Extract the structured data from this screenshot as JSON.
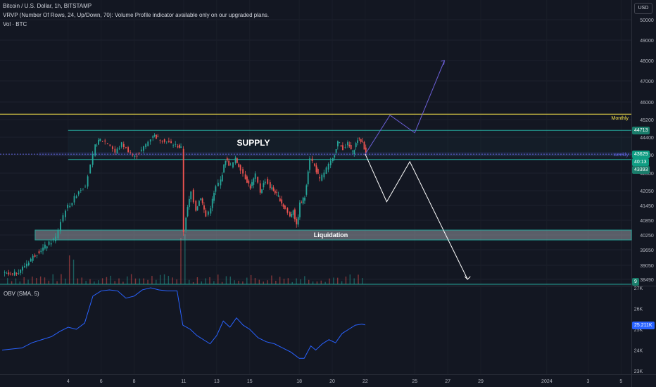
{
  "header": {
    "title": "Bitcoin / U.S. Dollar, 1h, BITSTAMP",
    "vrvp": "VRVP (Number Of Rows, 24, Up/Down, 70): Volume Profile indicator available only on our upgraded plans.",
    "vol": "Vol · BTC"
  },
  "currency_button": "USD",
  "colors": {
    "background": "#131722",
    "up": "#26a69a",
    "down": "#ef5350",
    "obv": "#2962ff",
    "monthly": "#f5e24a",
    "supply": "#26a69a",
    "weekly": "#5b5fd6",
    "arrow_white": "#ffffff",
    "arrow_purple": "#6b5fd6"
  },
  "price_tags": {
    "top": "44713",
    "current": "43629",
    "countdown": "40:13",
    "bottom": "43393",
    "volume": "9",
    "obv_value": "25.211K"
  },
  "chart_data": [
    {
      "type": "candlestick",
      "y_axis_ticks": [
        "50000",
        "49000",
        "48000",
        "47000",
        "46000",
        "45200",
        "44400",
        "43600",
        "42800",
        "42050",
        "41450",
        "40850",
        "40250",
        "39650",
        "39050",
        "38490"
      ],
      "x_axis_ticks": [
        "4",
        "6",
        "8",
        "11",
        "13",
        "15",
        "18",
        "20",
        "22",
        "25",
        "27",
        "29",
        "2024",
        "3",
        "5"
      ],
      "annotations": {
        "supply_label": "SUPPLY",
        "liquidation_label": "Liquidation",
        "monthly_label": "Monthly",
        "weekly_label": "weekly"
      },
      "levels": {
        "monthly": 45450,
        "supply_top": 44713,
        "supply_bottom": 43393,
        "weekly": 43629,
        "liquidation_top": 40450,
        "liquidation_bottom": 40050
      },
      "projection_bearish": [
        [
          22,
          43629
        ],
        [
          23.3,
          41600
        ],
        [
          24.7,
          43300
        ],
        [
          28.2,
          38490
        ]
      ],
      "projection_bullish": [
        [
          22,
          43629
        ],
        [
          23.5,
          45400
        ],
        [
          25,
          44600
        ],
        [
          26.8,
          48000
        ]
      ],
      "price_path": [
        [
          0,
          38700
        ],
        [
          0.6,
          38650
        ],
        [
          1.2,
          38950
        ],
        [
          1.7,
          39300
        ],
        [
          2.2,
          39600
        ],
        [
          2.8,
          39900
        ],
        [
          3.2,
          40150
        ],
        [
          3.5,
          40800
        ],
        [
          3.8,
          41300
        ],
        [
          4.2,
          41600
        ],
        [
          4.6,
          42050
        ],
        [
          5.0,
          42300
        ],
        [
          5.3,
          43100
        ],
        [
          5.6,
          44000
        ],
        [
          5.9,
          44300
        ],
        [
          6.2,
          44200
        ],
        [
          6.5,
          44050
        ],
        [
          6.8,
          43700
        ],
        [
          7.2,
          44100
        ],
        [
          7.6,
          43800
        ],
        [
          8.0,
          43500
        ],
        [
          8.4,
          43800
        ],
        [
          8.8,
          44200
        ],
        [
          9.1,
          44500
        ],
        [
          9.4,
          44350
        ],
        [
          9.8,
          44250
        ],
        [
          10.2,
          44100
        ],
        [
          10.6,
          44000
        ],
        [
          10.8,
          43900
        ],
        [
          10.95,
          40400
        ],
        [
          11.1,
          41000
        ],
        [
          11.4,
          42000
        ],
        [
          11.7,
          41300
        ],
        [
          12.0,
          41800
        ],
        [
          12.3,
          41000
        ],
        [
          12.6,
          41400
        ],
        [
          12.9,
          42200
        ],
        [
          13.2,
          42500
        ],
        [
          13.5,
          43400
        ],
        [
          13.8,
          43100
        ],
        [
          14.1,
          43400
        ],
        [
          14.4,
          43000
        ],
        [
          14.7,
          42600
        ],
        [
          15.0,
          42200
        ],
        [
          15.3,
          42700
        ],
        [
          15.6,
          42000
        ],
        [
          15.9,
          42500
        ],
        [
          16.2,
          42200
        ],
        [
          16.5,
          42000
        ],
        [
          16.8,
          41700
        ],
        [
          17.1,
          41300
        ],
        [
          17.4,
          41000
        ],
        [
          17.6,
          41300
        ],
        [
          17.8,
          40600
        ],
        [
          18.0,
          41500
        ],
        [
          18.3,
          41800
        ],
        [
          18.6,
          43500
        ],
        [
          18.9,
          43100
        ],
        [
          19.2,
          42500
        ],
        [
          19.6,
          43000
        ],
        [
          20.0,
          43400
        ],
        [
          20.3,
          44200
        ],
        [
          20.6,
          43900
        ],
        [
          20.9,
          44100
        ],
        [
          21.2,
          43700
        ],
        [
          21.5,
          44300
        ],
        [
          21.8,
          44200
        ],
        [
          22.0,
          43629
        ]
      ]
    },
    {
      "type": "line",
      "title": "OBV (SMA, 5)",
      "y_axis_ticks": [
        "27K",
        "26K",
        "25K",
        "24K",
        "23K"
      ],
      "series": [
        {
          "values": [
            [
              0,
              24.0
            ],
            [
              0.6,
              24.05
            ],
            [
              1.2,
              24.1
            ],
            [
              1.8,
              24.35
            ],
            [
              2.4,
              24.5
            ],
            [
              3.0,
              24.65
            ],
            [
              3.5,
              24.9
            ],
            [
              4.0,
              25.1
            ],
            [
              4.5,
              25.0
            ],
            [
              5.0,
              25.3
            ],
            [
              5.5,
              26.6
            ],
            [
              6.0,
              26.85
            ],
            [
              6.5,
              26.9
            ],
            [
              7.0,
              26.85
            ],
            [
              7.5,
              26.5
            ],
            [
              8.0,
              26.6
            ],
            [
              8.5,
              26.9
            ],
            [
              9.0,
              27.0
            ],
            [
              9.5,
              26.9
            ],
            [
              10.0,
              26.85
            ],
            [
              10.6,
              26.85
            ],
            [
              10.95,
              25.2
            ],
            [
              11.4,
              25.0
            ],
            [
              11.8,
              24.7
            ],
            [
              12.2,
              24.5
            ],
            [
              12.6,
              24.3
            ],
            [
              13.0,
              24.7
            ],
            [
              13.4,
              25.4
            ],
            [
              13.8,
              25.1
            ],
            [
              14.2,
              25.55
            ],
            [
              14.6,
              25.2
            ],
            [
              15.0,
              25.0
            ],
            [
              15.5,
              24.6
            ],
            [
              16.0,
              24.4
            ],
            [
              16.5,
              24.3
            ],
            [
              17.0,
              24.1
            ],
            [
              17.5,
              23.9
            ],
            [
              18.0,
              23.6
            ],
            [
              18.3,
              23.6
            ],
            [
              18.7,
              24.2
            ],
            [
              19.0,
              24.0
            ],
            [
              19.4,
              24.3
            ],
            [
              19.8,
              24.5
            ],
            [
              20.2,
              24.35
            ],
            [
              20.6,
              24.8
            ],
            [
              21.0,
              25.0
            ],
            [
              21.4,
              25.2
            ],
            [
              21.8,
              25.25
            ],
            [
              22.0,
              25.211
            ]
          ]
        }
      ]
    }
  ]
}
